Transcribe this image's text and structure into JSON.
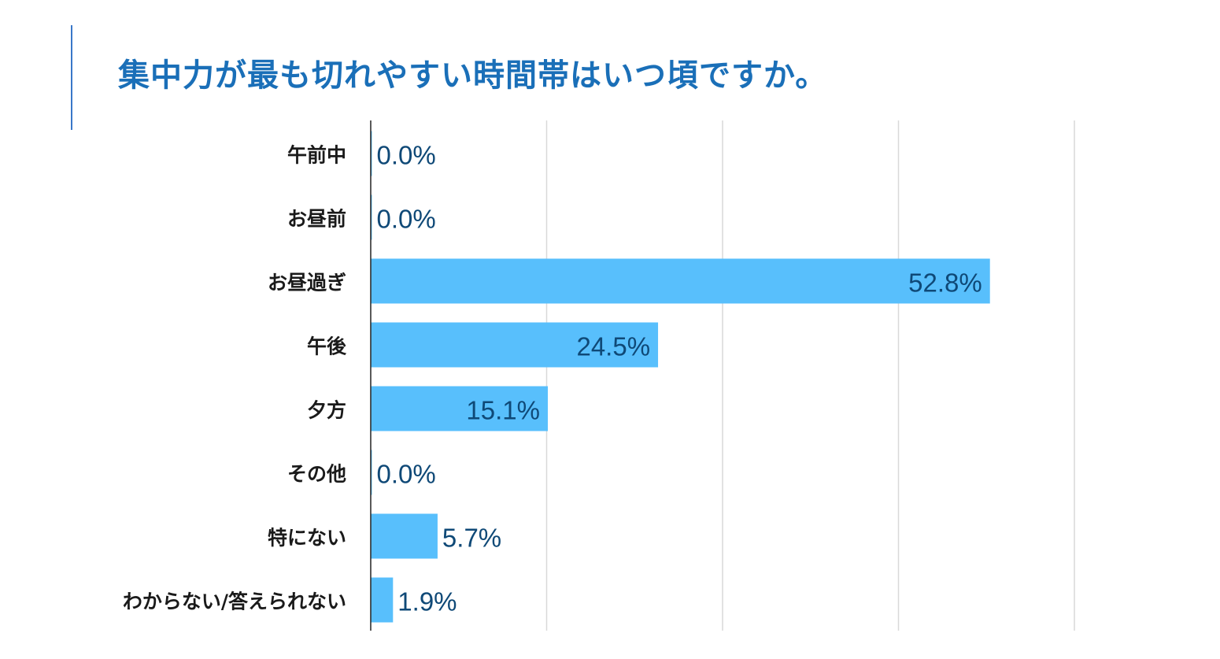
{
  "chart_data": {
    "type": "bar",
    "orientation": "horizontal",
    "title": "集中力が最も切れやすい時間帯はいつ頃ですか。",
    "categories": [
      "午前中",
      "お昼前",
      "お昼過ぎ",
      "午後",
      "夕方",
      "その他",
      "特にない",
      "わからない/答えられない"
    ],
    "values": [
      0.0,
      0.0,
      52.8,
      24.5,
      15.1,
      0.0,
      5.7,
      1.9
    ],
    "value_labels": [
      "0.0%",
      "0.0%",
      "52.8%",
      "24.5%",
      "15.1%",
      "0.0%",
      "5.7%",
      "1.9%"
    ],
    "xlim": [
      0,
      60
    ],
    "grid": true,
    "legend": "none"
  },
  "colors": {
    "bar": "#58bffc",
    "title": "#1a6fb8",
    "value_text": "#0f4977",
    "grid": "#d9d9d9",
    "axis": "#222222",
    "accent_line": "#3a78c9"
  }
}
